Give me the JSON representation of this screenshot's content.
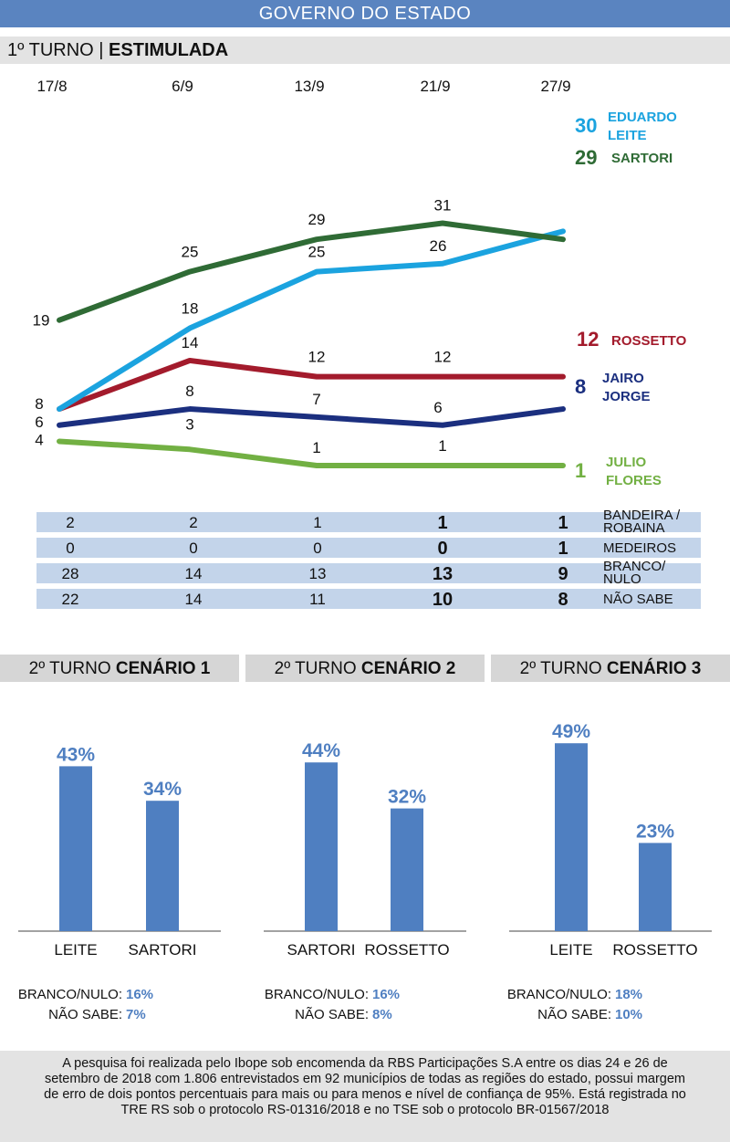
{
  "header": {
    "title": "GOVERNO DO ESTADO"
  },
  "subheader": {
    "prefix": "1º TURNO | ",
    "bold": "ESTIMULADA"
  },
  "chart_data": [
    {
      "type": "line",
      "x": [
        "17/8",
        "6/9",
        "13/9",
        "21/9",
        "27/9"
      ],
      "series": [
        {
          "name": "EDUARDO LEITE",
          "label_lines": [
            "EDUARDO",
            "LEITE"
          ],
          "values": [
            8,
            18,
            25,
            26,
            30
          ],
          "color": "#1ba3df"
        },
        {
          "name": "SARTORI",
          "label_lines": [
            "SARTORI"
          ],
          "values": [
            19,
            25,
            29,
            31,
            29
          ],
          "color": "#2f6b35"
        },
        {
          "name": "ROSSETTO",
          "label_lines": [
            "ROSSETTO"
          ],
          "values": [
            8,
            14,
            12,
            12,
            12
          ],
          "color": "#a31b2c"
        },
        {
          "name": "JAIRO JORGE",
          "label_lines": [
            "JAIRO",
            "JORGE"
          ],
          "values": [
            6,
            8,
            7,
            6,
            8
          ],
          "color": "#1b2f7f"
        },
        {
          "name": "JULIO FLORES",
          "label_lines": [
            "JULIO",
            "FLORES"
          ],
          "values": [
            4,
            3,
            1,
            1,
            1
          ],
          "color": "#72b043"
        }
      ]
    },
    {
      "type": "table",
      "rows": [
        {
          "label_lines": [
            "BANDEIRA /",
            "ROBAINA"
          ],
          "values": [
            "2",
            "2",
            "1",
            "1",
            "1"
          ]
        },
        {
          "label_lines": [
            "MEDEIROS"
          ],
          "values": [
            "0",
            "0",
            "0",
            "0",
            "1"
          ]
        },
        {
          "label_lines": [
            "BRANCO/",
            "NULO"
          ],
          "values": [
            "28",
            "14",
            "13",
            "13",
            "9"
          ]
        },
        {
          "label_lines": [
            "NÃO SABE"
          ],
          "values": [
            "22",
            "14",
            "11",
            "10",
            "8"
          ]
        }
      ]
    },
    {
      "type": "bar",
      "title_prefix": "2º TURNO ",
      "title_bold": "CENÁRIO 1",
      "categories": [
        "LEITE",
        "SARTORI"
      ],
      "values": [
        43,
        34
      ],
      "value_labels": [
        "43%",
        "34%"
      ],
      "branco_nulo_label": "BRANCO/NULO:",
      "branco_nulo": "16%",
      "nao_sabe_label": "NÃO SABE:",
      "nao_sabe": "7%"
    },
    {
      "type": "bar",
      "title_prefix": "2º TURNO ",
      "title_bold": "CENÁRIO 2",
      "categories": [
        "SARTORI",
        "ROSSETTO"
      ],
      "values": [
        44,
        32
      ],
      "value_labels": [
        "44%",
        "32%"
      ],
      "branco_nulo_label": "BRANCO/NULO:",
      "branco_nulo": "16%",
      "nao_sabe_label": "NÃO SABE:",
      "nao_sabe": "8%"
    },
    {
      "type": "bar",
      "title_prefix": "2º TURNO ",
      "title_bold": "CENÁRIO 3",
      "categories": [
        "LEITE",
        "ROSSETTO"
      ],
      "values": [
        49,
        23
      ],
      "value_labels": [
        "49%",
        "23%"
      ],
      "branco_nulo_label": "BRANCO/NULO:",
      "branco_nulo": "18%",
      "nao_sabe_label": "NÃO SABE:",
      "nao_sabe": "10%"
    }
  ],
  "colors": {
    "bar": "#4f7fc1",
    "value_text": "#4f7fc1",
    "banner": "#5a84c0",
    "table_row": "#c3d4ea"
  },
  "footer": {
    "text": "A pesquisa foi realizada pelo Ibope sob encomenda da RBS Participações S.A entre os dias 24 e 26 de setembro de 2018 com 1.806 entrevistados em 92 municípios de todas as regiões do estado, possui margem de erro de dois pontos percentuais para mais ou para menos e nível de confiança de 95%. Está registrada no TRE RS sob o protocolo RS-01316/2018 e no TSE sob o protocolo BR-01567/2018"
  }
}
